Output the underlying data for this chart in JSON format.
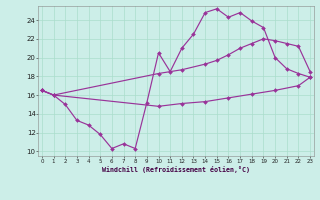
{
  "bg_color": "#cceee8",
  "grid_color": "#aaddcc",
  "line_color": "#993399",
  "xlim_min": -0.3,
  "xlim_max": 23.3,
  "ylim_min": 9.5,
  "ylim_max": 25.5,
  "xticks": [
    0,
    1,
    2,
    3,
    4,
    5,
    6,
    7,
    8,
    9,
    10,
    11,
    12,
    13,
    14,
    15,
    16,
    17,
    18,
    19,
    20,
    21,
    22,
    23
  ],
  "yticks": [
    10,
    12,
    14,
    16,
    18,
    20,
    22,
    24
  ],
  "xlabel": "Windchill (Refroidissement éolien,°C)",
  "line1_x": [
    0,
    1,
    2,
    3,
    4,
    5,
    6,
    7,
    8,
    9,
    10,
    11,
    12,
    13,
    14,
    15,
    16,
    17,
    18,
    19,
    20,
    21,
    22,
    23
  ],
  "line1_y": [
    16.5,
    16.0,
    15.0,
    13.3,
    12.8,
    11.8,
    10.3,
    10.8,
    10.3,
    15.2,
    20.5,
    18.5,
    21.0,
    22.5,
    24.8,
    25.2,
    24.3,
    24.8,
    23.9,
    23.2,
    20.0,
    18.8,
    18.3,
    17.9
  ],
  "line2_x": [
    0,
    1,
    10,
    12,
    14,
    15,
    16,
    17,
    18,
    19,
    20,
    21,
    22,
    23
  ],
  "line2_y": [
    16.5,
    16.0,
    18.3,
    18.7,
    19.3,
    19.7,
    20.3,
    21.0,
    21.5,
    22.0,
    21.8,
    21.5,
    21.2,
    18.5
  ],
  "line3_x": [
    0,
    1,
    10,
    12,
    14,
    16,
    18,
    20,
    22,
    23
  ],
  "line3_y": [
    16.5,
    16.0,
    14.8,
    15.1,
    15.3,
    15.7,
    16.1,
    16.5,
    17.0,
    17.9
  ]
}
